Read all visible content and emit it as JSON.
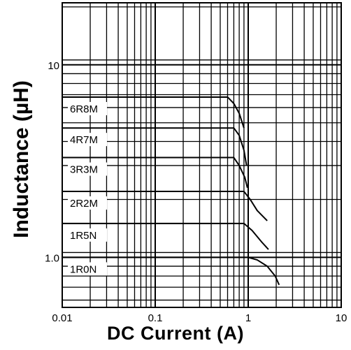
{
  "chart_data": {
    "type": "line",
    "xlabel": "DC Current (A)",
    "ylabel": "Inductance (µH)",
    "xscale": "log",
    "yscale": "log",
    "xlim": [
      0.01,
      10
    ],
    "ylim": [
      0.55,
      21
    ],
    "grid": true,
    "x_ticks": [
      {
        "value": 0.01,
        "label": "0.01"
      },
      {
        "value": 0.1,
        "label": "0.1"
      },
      {
        "value": 1,
        "label": "1"
      },
      {
        "value": 10,
        "label": "10"
      }
    ],
    "y_ticks": [
      {
        "value": 1,
        "label": "1.0"
      },
      {
        "value": 10,
        "label": "10"
      }
    ],
    "series": [
      {
        "name": "6R8M",
        "x": [
          0.01,
          0.6,
          0.7,
          0.8,
          0.9
        ],
        "y": [
          6.8,
          6.8,
          6.3,
          5.6,
          4.7
        ]
      },
      {
        "name": "4R7M",
        "x": [
          0.01,
          0.7,
          0.8,
          0.9,
          0.96
        ],
        "y": [
          4.7,
          4.7,
          4.3,
          3.6,
          3.0
        ]
      },
      {
        "name": "3R3M",
        "x": [
          0.01,
          0.7,
          0.8,
          0.92,
          0.98
        ],
        "y": [
          3.3,
          3.3,
          3.0,
          2.6,
          2.3
        ]
      },
      {
        "name": "2R2M",
        "x": [
          0.01,
          0.9,
          1.05,
          1.25,
          1.6
        ],
        "y": [
          2.2,
          2.2,
          2.0,
          1.75,
          1.55
        ]
      },
      {
        "name": "1R5N",
        "x": [
          0.01,
          0.9,
          1.1,
          1.4,
          1.65
        ],
        "y": [
          1.5,
          1.5,
          1.38,
          1.2,
          1.1
        ]
      },
      {
        "name": "1R0N",
        "x": [
          0.01,
          1.0,
          1.25,
          1.6,
          1.95,
          2.15
        ],
        "y": [
          1.0,
          1.0,
          0.97,
          0.9,
          0.8,
          0.72
        ]
      }
    ]
  }
}
